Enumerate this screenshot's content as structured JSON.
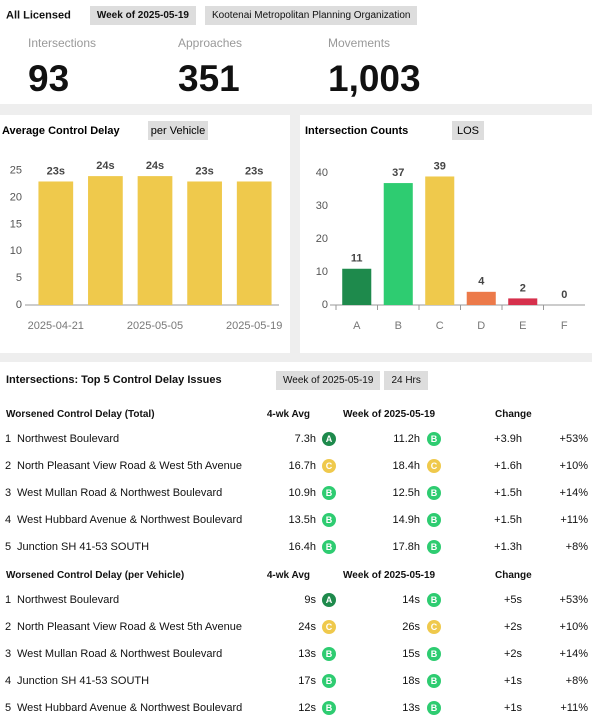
{
  "header": {
    "title": "All Licensed",
    "badges": [
      "Week of 2025-05-19",
      "Kootenai Metropolitan Planning Organization"
    ]
  },
  "kpis": [
    {
      "label": "Intersections",
      "value": "93"
    },
    {
      "label": "Approaches",
      "value": "351"
    },
    {
      "label": "Movements",
      "value": "1,003"
    }
  ],
  "chart_data": [
    {
      "type": "bar",
      "title": "Average Control Delay",
      "badge": "per Vehicle",
      "categories": [
        "2025-04-21",
        null,
        "2025-05-05",
        null,
        "2025-05-19"
      ],
      "values": [
        23,
        24,
        24,
        23,
        23
      ],
      "value_labels": [
        "23s",
        "24s",
        "24s",
        "23s",
        "23s"
      ],
      "color": "#efc94c",
      "ylim": [
        0,
        27
      ],
      "yticks": [
        0,
        5,
        10,
        15,
        20,
        25
      ],
      "grid": false
    },
    {
      "type": "bar",
      "title": "Intersection Counts",
      "badge": "LOS",
      "categories": [
        "A",
        "B",
        "C",
        "D",
        "E",
        "F"
      ],
      "values": [
        11,
        37,
        39,
        4,
        2,
        0
      ],
      "colors": [
        "#1e8a4c",
        "#2ecc71",
        "#efc94c",
        "#ec7a4a",
        "#d6304c",
        "#999999"
      ],
      "ylim": [
        0,
        44
      ],
      "yticks": [
        0,
        10,
        20,
        30,
        40
      ],
      "grid": false
    }
  ],
  "table": {
    "title": "Intersections: Top 5 Control Delay Issues",
    "badges": [
      "Week of 2025-05-19",
      "24 Hrs"
    ],
    "sections": [
      {
        "headers": [
          "Worsened Control Delay (Total)",
          "4-wk Avg",
          "Week of 2025-05-19",
          "Change"
        ],
        "rows": [
          [
            "1",
            "Northwest Boulevard",
            "7.3h",
            "A",
            "11.2h",
            "B",
            "+3.9h",
            "+53%"
          ],
          [
            "2",
            "North Pleasant View Road & West 5th Avenue",
            "16.7h",
            "C",
            "18.4h",
            "C",
            "+1.6h",
            "+10%"
          ],
          [
            "3",
            "West Mullan Road & Northwest Boulevard",
            "10.9h",
            "B",
            "12.5h",
            "B",
            "+1.5h",
            "+14%"
          ],
          [
            "4",
            "West Hubbard Avenue & Northwest Boulevard",
            "13.5h",
            "B",
            "14.9h",
            "B",
            "+1.5h",
            "+11%"
          ],
          [
            "5",
            "Junction SH 41-53 SOUTH",
            "16.4h",
            "B",
            "17.8h",
            "B",
            "+1.3h",
            "+8%"
          ]
        ]
      },
      {
        "headers": [
          "Worsened Control Delay (per Vehicle)",
          "4-wk Avg",
          "Week of 2025-05-19",
          "Change"
        ],
        "rows": [
          [
            "1",
            "Northwest Boulevard",
            "9s",
            "A",
            "14s",
            "B",
            "+5s",
            "+53%"
          ],
          [
            "2",
            "North Pleasant View Road & West 5th Avenue",
            "24s",
            "C",
            "26s",
            "C",
            "+2s",
            "+10%"
          ],
          [
            "3",
            "West Mullan Road & Northwest Boulevard",
            "13s",
            "B",
            "15s",
            "B",
            "+2s",
            "+14%"
          ],
          [
            "4",
            "Junction SH 41-53 SOUTH",
            "17s",
            "B",
            "18s",
            "B",
            "+1s",
            "+8%"
          ],
          [
            "5",
            "West Hubbard Avenue & Northwest Boulevard",
            "12s",
            "B",
            "13s",
            "B",
            "+1s",
            "+11%"
          ]
        ]
      }
    ]
  }
}
